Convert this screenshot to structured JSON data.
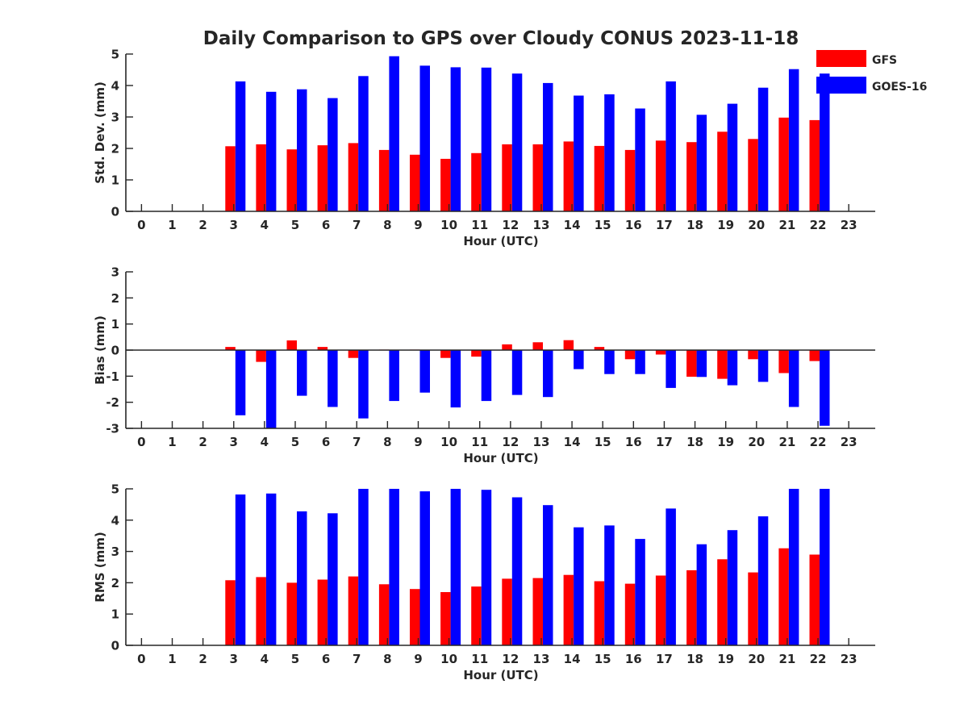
{
  "figure": {
    "title": "Daily Comparison to GPS over Cloudy CONUS 2023-11-18"
  },
  "legend": {
    "placement": "top-right",
    "entries": [
      {
        "label": "GFS",
        "color": "#ff0000"
      },
      {
        "label": "GOES-16",
        "color": "#0000ff"
      }
    ]
  },
  "chart_data": [
    {
      "type": "bar",
      "xlabel": "Hour (UTC)",
      "ylabel": "Std. Dev. (mm)",
      "ylim": [
        0,
        5
      ],
      "yticks": [
        0,
        1,
        2,
        3,
        4,
        5
      ],
      "grid": false,
      "categories": [
        0,
        1,
        2,
        3,
        4,
        5,
        6,
        7,
        8,
        9,
        10,
        11,
        12,
        13,
        14,
        15,
        16,
        17,
        18,
        19,
        20,
        21,
        22,
        23
      ],
      "series": [
        {
          "name": "GFS",
          "color": "#ff0000",
          "values": [
            null,
            null,
            null,
            2.07,
            2.13,
            1.97,
            2.1,
            2.17,
            1.95,
            1.8,
            1.67,
            1.85,
            2.13,
            2.13,
            2.22,
            2.08,
            1.95,
            2.25,
            2.2,
            2.53,
            2.3,
            2.98,
            2.9,
            null
          ]
        },
        {
          "name": "GOES-16",
          "color": "#0000ff",
          "values": [
            null,
            null,
            null,
            4.13,
            3.8,
            3.88,
            3.6,
            4.3,
            4.93,
            4.63,
            4.58,
            4.57,
            4.38,
            4.08,
            3.68,
            3.72,
            3.27,
            4.13,
            3.07,
            3.42,
            3.93,
            4.52,
            4.38,
            null
          ]
        }
      ]
    },
    {
      "type": "bar",
      "xlabel": "Hour (UTC)",
      "ylabel": "Bias (mm)",
      "ylim": [
        -3,
        3
      ],
      "yticks": [
        -3,
        -2,
        -1,
        0,
        1,
        2,
        3
      ],
      "zero_line": true,
      "grid": false,
      "categories": [
        0,
        1,
        2,
        3,
        4,
        5,
        6,
        7,
        8,
        9,
        10,
        11,
        12,
        13,
        14,
        15,
        16,
        17,
        18,
        19,
        20,
        21,
        22,
        23
      ],
      "series": [
        {
          "name": "GFS",
          "color": "#ff0000",
          "values": [
            null,
            null,
            null,
            0.12,
            -0.45,
            0.37,
            0.12,
            -0.3,
            0.02,
            0.02,
            -0.3,
            -0.25,
            0.22,
            0.3,
            0.38,
            0.12,
            -0.35,
            -0.17,
            -1.02,
            -1.1,
            -0.35,
            -0.88,
            -0.42,
            null
          ]
        },
        {
          "name": "GOES-16",
          "color": "#0000ff",
          "values": [
            null,
            null,
            null,
            -2.5,
            -3.0,
            -1.75,
            -2.18,
            -2.62,
            -1.95,
            -1.63,
            -2.2,
            -1.95,
            -1.72,
            -1.8,
            -0.73,
            -0.92,
            -0.92,
            -1.45,
            -1.03,
            -1.35,
            -1.22,
            -2.18,
            -2.9,
            null
          ]
        }
      ]
    },
    {
      "type": "bar",
      "xlabel": "Hour (UTC)",
      "ylabel": "RMS (mm)",
      "ylim": [
        0,
        5
      ],
      "yticks": [
        0,
        1,
        2,
        3,
        4,
        5
      ],
      "grid": false,
      "categories": [
        0,
        1,
        2,
        3,
        4,
        5,
        6,
        7,
        8,
        9,
        10,
        11,
        12,
        13,
        14,
        15,
        16,
        17,
        18,
        19,
        20,
        21,
        22,
        23
      ],
      "series": [
        {
          "name": "GFS",
          "color": "#ff0000",
          "values": [
            null,
            null,
            null,
            2.08,
            2.18,
            2.0,
            2.1,
            2.2,
            1.95,
            1.8,
            1.7,
            1.88,
            2.13,
            2.15,
            2.25,
            2.05,
            1.97,
            2.23,
            2.4,
            2.75,
            2.33,
            3.1,
            2.9,
            null
          ]
        },
        {
          "name": "GOES-16",
          "color": "#0000ff",
          "values": [
            null,
            null,
            null,
            4.82,
            4.85,
            4.28,
            4.22,
            5.0,
            5.0,
            4.92,
            5.0,
            4.97,
            4.73,
            4.48,
            3.77,
            3.83,
            3.4,
            4.37,
            3.23,
            3.68,
            4.12,
            5.0,
            5.0,
            null
          ]
        }
      ]
    }
  ]
}
